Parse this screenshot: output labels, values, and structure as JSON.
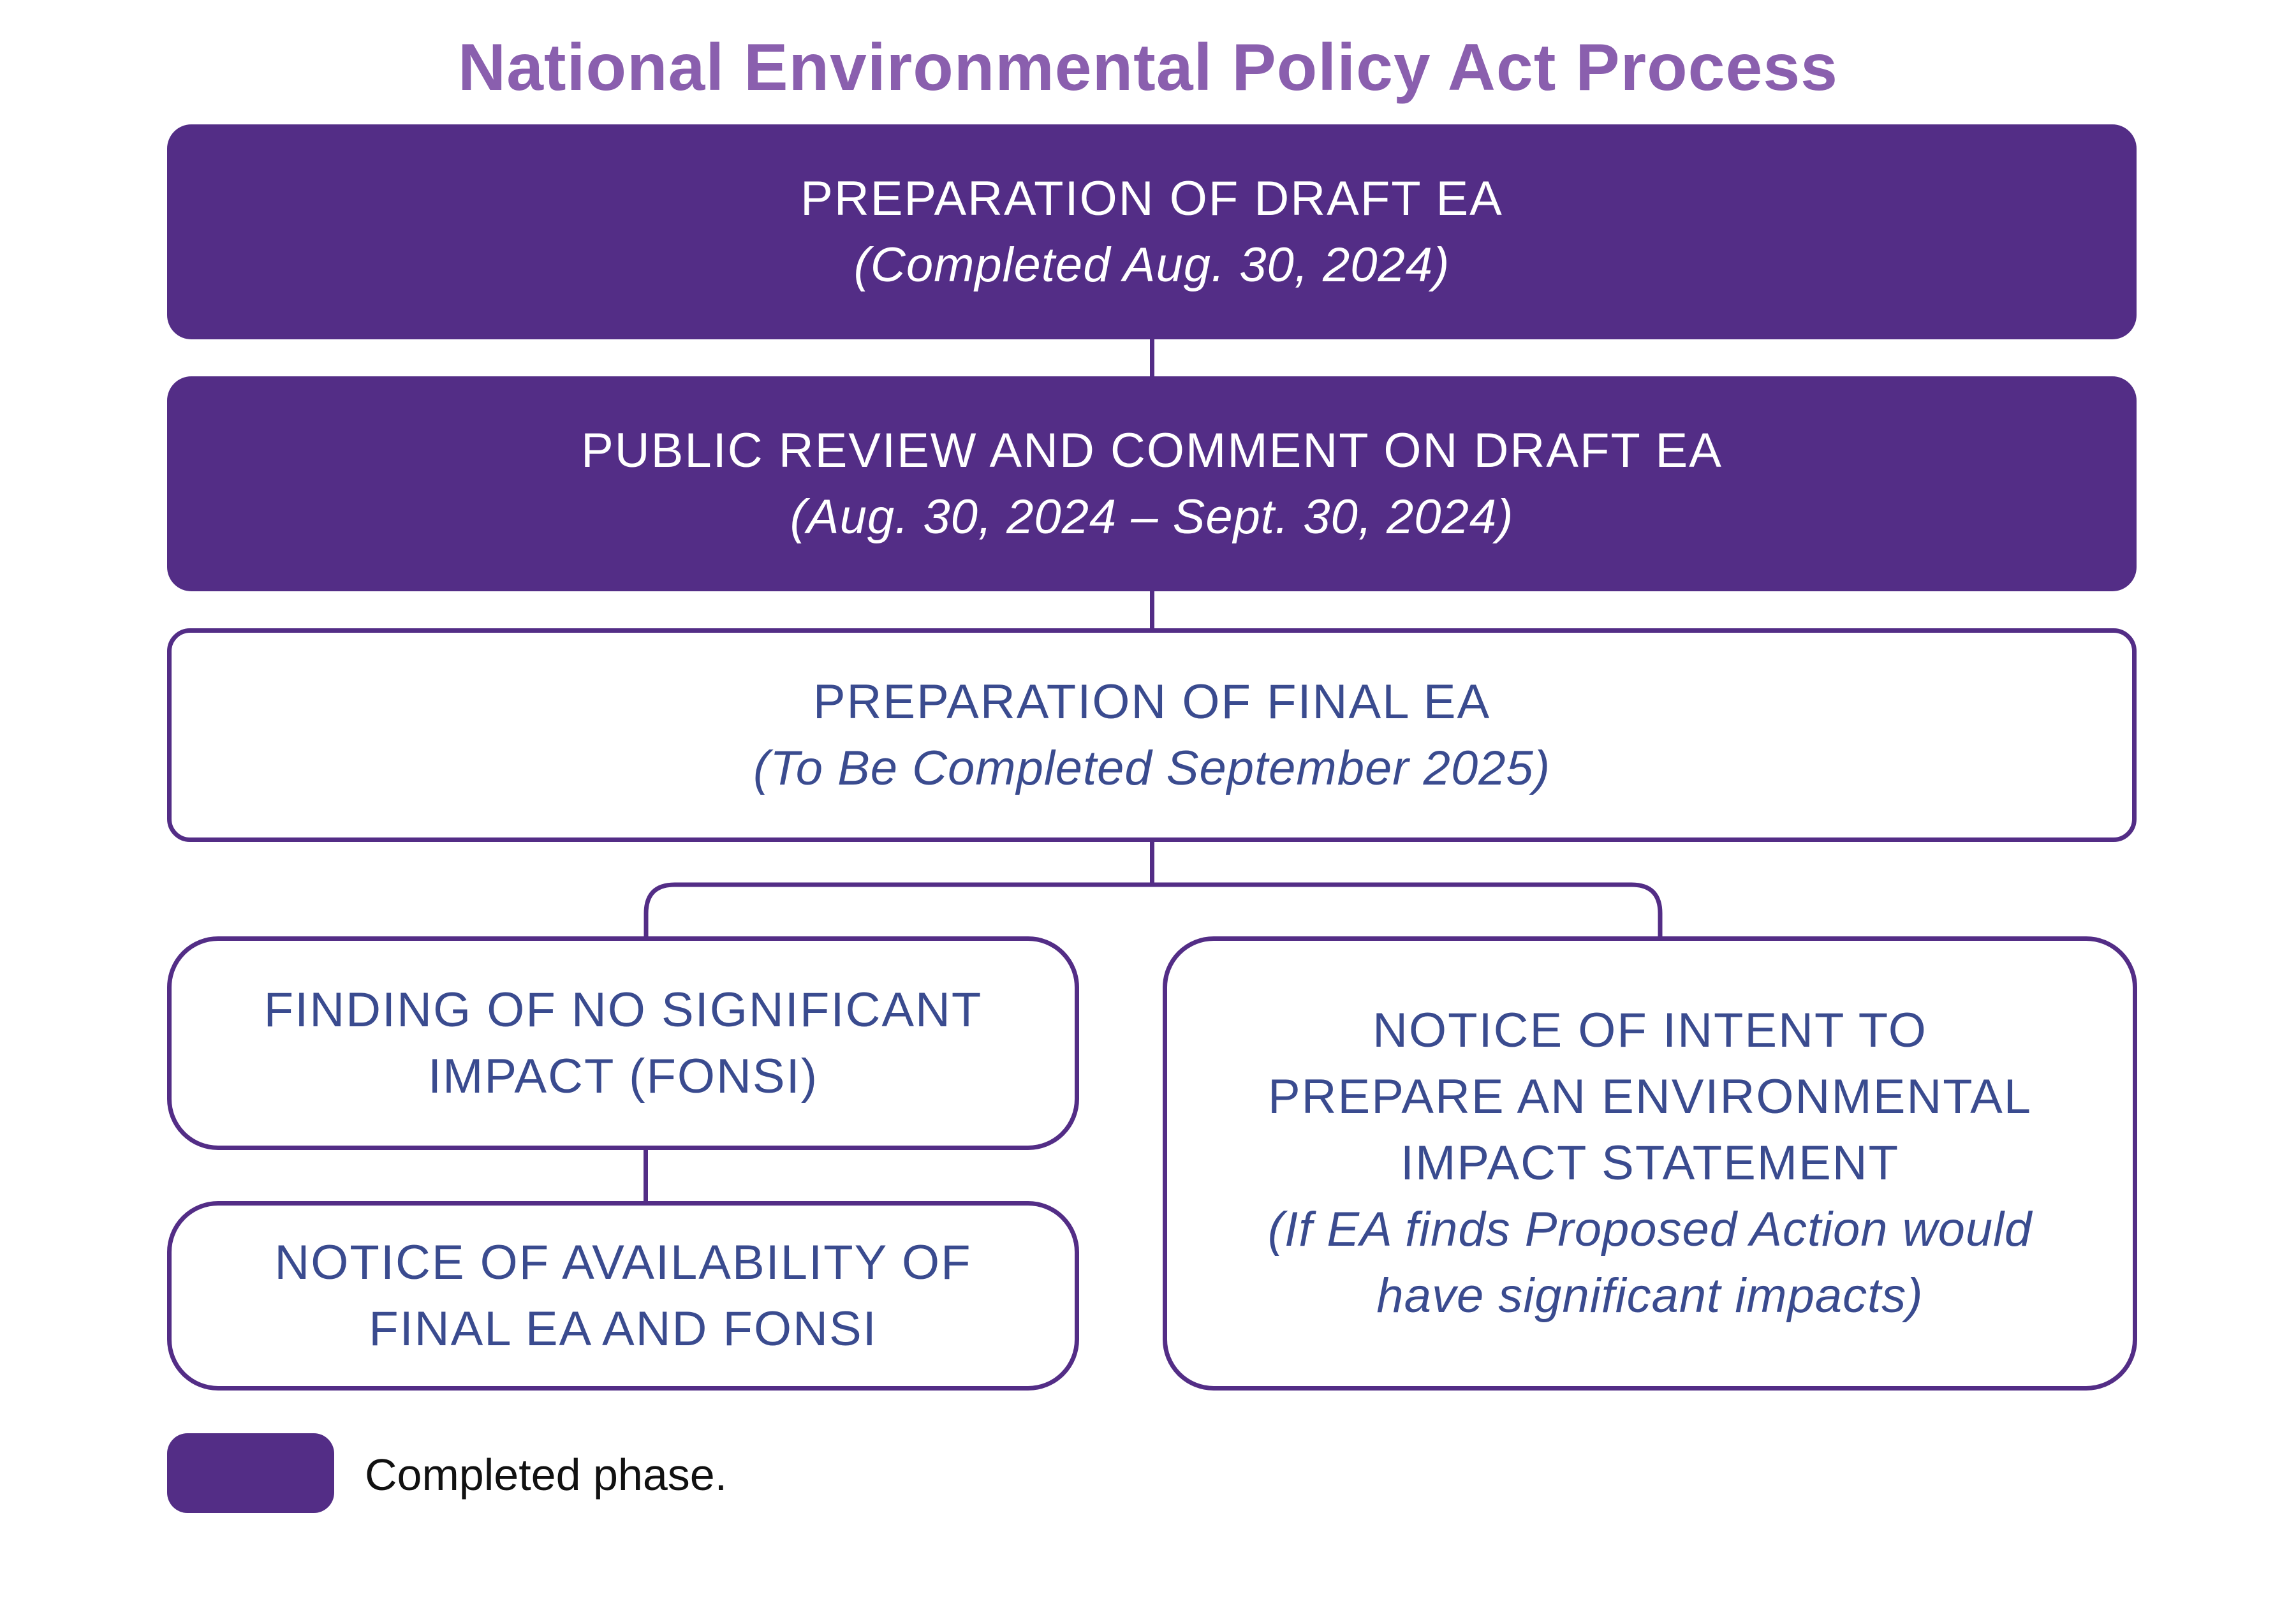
{
  "title": "National Environmental Policy Act Process",
  "colors": {
    "completed_fill": "#532d86",
    "pending_text": "#3a4b8f",
    "title": "#8a5fae"
  },
  "steps": [
    {
      "heading": "PREPARATION OF DRAFT EA",
      "note": "(Completed Aug. 30, 2024)",
      "status": "completed"
    },
    {
      "heading": "PUBLIC REVIEW AND COMMENT ON DRAFT EA",
      "note": "(Aug. 30, 2024 – Sept. 30, 2024)",
      "status": "completed"
    },
    {
      "heading": "PREPARATION OF FINAL EA",
      "note": "(To Be Completed September 2025)",
      "status": "pending"
    }
  ],
  "branch_left": {
    "fonsi": {
      "line1": "FINDING OF NO SIGNIFICANT",
      "line2": "IMPACT (FONSI)"
    },
    "availability": {
      "line1": "NOTICE OF AVAILABILITY OF",
      "line2": "FINAL EA AND FONSI"
    }
  },
  "branch_right": {
    "line1": "NOTICE OF INTENT TO",
    "line2": "PREPARE AN ENVIRONMENTAL",
    "line3": "IMPACT STATEMENT",
    "note1": "(If EA finds Proposed Action would",
    "note2": "have significant impacts)"
  },
  "legend": {
    "label": "Completed phase."
  }
}
